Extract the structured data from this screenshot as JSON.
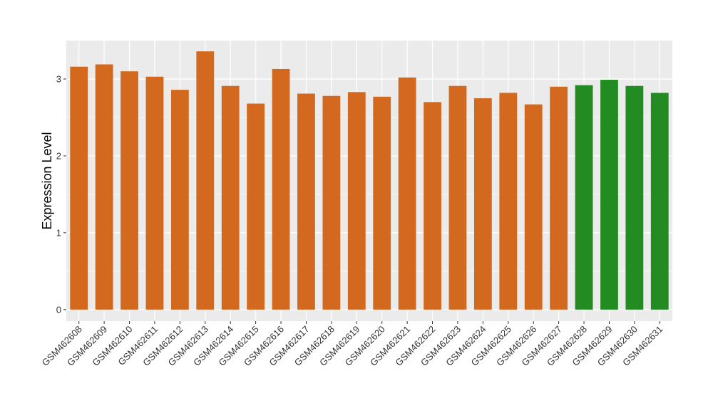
{
  "chart_data": {
    "type": "bar",
    "title": "",
    "xlabel": "",
    "ylabel": "Expression Level",
    "ylim": [
      -0.15,
      3.5
    ],
    "yticks": [
      0,
      1,
      2,
      3
    ],
    "grid": true,
    "legend": "none",
    "categories": [
      "GSM462608",
      "GSM462609",
      "GSM462610",
      "GSM462611",
      "GSM462612",
      "GSM462613",
      "GSM462614",
      "GSM462615",
      "GSM462616",
      "GSM462617",
      "GSM462618",
      "GSM462619",
      "GSM462620",
      "GSM462621",
      "GSM462622",
      "GSM462623",
      "GSM462624",
      "GSM462625",
      "GSM462626",
      "GSM462627",
      "GSM462628",
      "GSM462629",
      "GSM462630",
      "GSM462631"
    ],
    "values": [
      3.16,
      3.19,
      3.1,
      3.03,
      2.86,
      3.36,
      2.91,
      2.68,
      3.13,
      2.81,
      2.78,
      2.83,
      2.77,
      3.02,
      2.7,
      2.91,
      2.75,
      2.82,
      2.67,
      2.9,
      2.92,
      2.99,
      2.91,
      2.82
    ],
    "groups": [
      0,
      0,
      0,
      0,
      0,
      0,
      0,
      0,
      0,
      0,
      0,
      0,
      0,
      0,
      0,
      0,
      0,
      0,
      0,
      0,
      1,
      1,
      1,
      1
    ],
    "colors": {
      "group0": "#d2691e",
      "group1": "#228b22",
      "panel": "#ebebeb",
      "grid": "#ffffff"
    }
  }
}
